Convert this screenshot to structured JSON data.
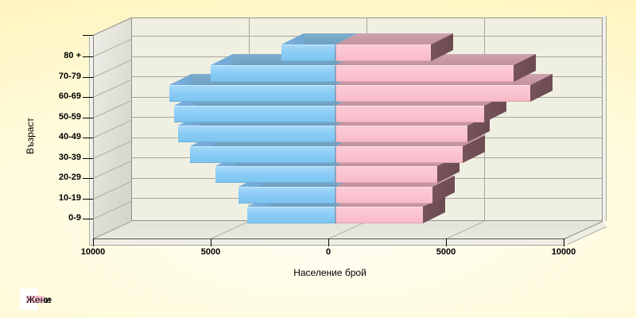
{
  "chart_data": {
    "type": "bar",
    "variant": "3d-horizontal-population-pyramid",
    "title": "",
    "xlabel": "Население брой",
    "ylabel": "Възраст",
    "categories": [
      "0-9",
      "10-19",
      "20-29",
      "30-39",
      "40-49",
      "50-59",
      "60-69",
      "70-79",
      "80 +"
    ],
    "series": [
      {
        "name": "Мъже",
        "side": "left",
        "color": "#8ACBF4",
        "values": [
          3750,
          4100,
          5100,
          6150,
          6650,
          6850,
          7050,
          5300,
          2300
        ]
      },
      {
        "name": "Жени",
        "side": "right",
        "color": "#FAC3CF",
        "values": [
          3700,
          4100,
          4300,
          5400,
          5600,
          6300,
          8250,
          7550,
          4050
        ]
      }
    ],
    "x_axis": {
      "tick_labels": [
        "10000",
        "5000",
        "0",
        "5000",
        "10000"
      ],
      "tick_values": [
        -10000,
        -5000,
        0,
        5000,
        10000
      ],
      "lim": [
        -10000,
        10000
      ]
    },
    "grid": true,
    "legend_position": "bottom-left"
  },
  "legend": {
    "items": [
      {
        "label": "Мъже",
        "color": "#8FCEF3"
      },
      {
        "label": "Жени",
        "color": "#F9C2CE"
      }
    ]
  },
  "colors": {
    "male_front": "#8ACBF4",
    "male_top": "#6E9FC1",
    "male_cap": "#72A7D4",
    "female_front": "#FAC3CF",
    "female_top": "#C4929E",
    "female_cap": "#6D4B52",
    "wall": "#F0F0E2",
    "grid": "#A6A69E",
    "background_from": "#FFFEF2",
    "background_to": "#FFF3B4"
  }
}
